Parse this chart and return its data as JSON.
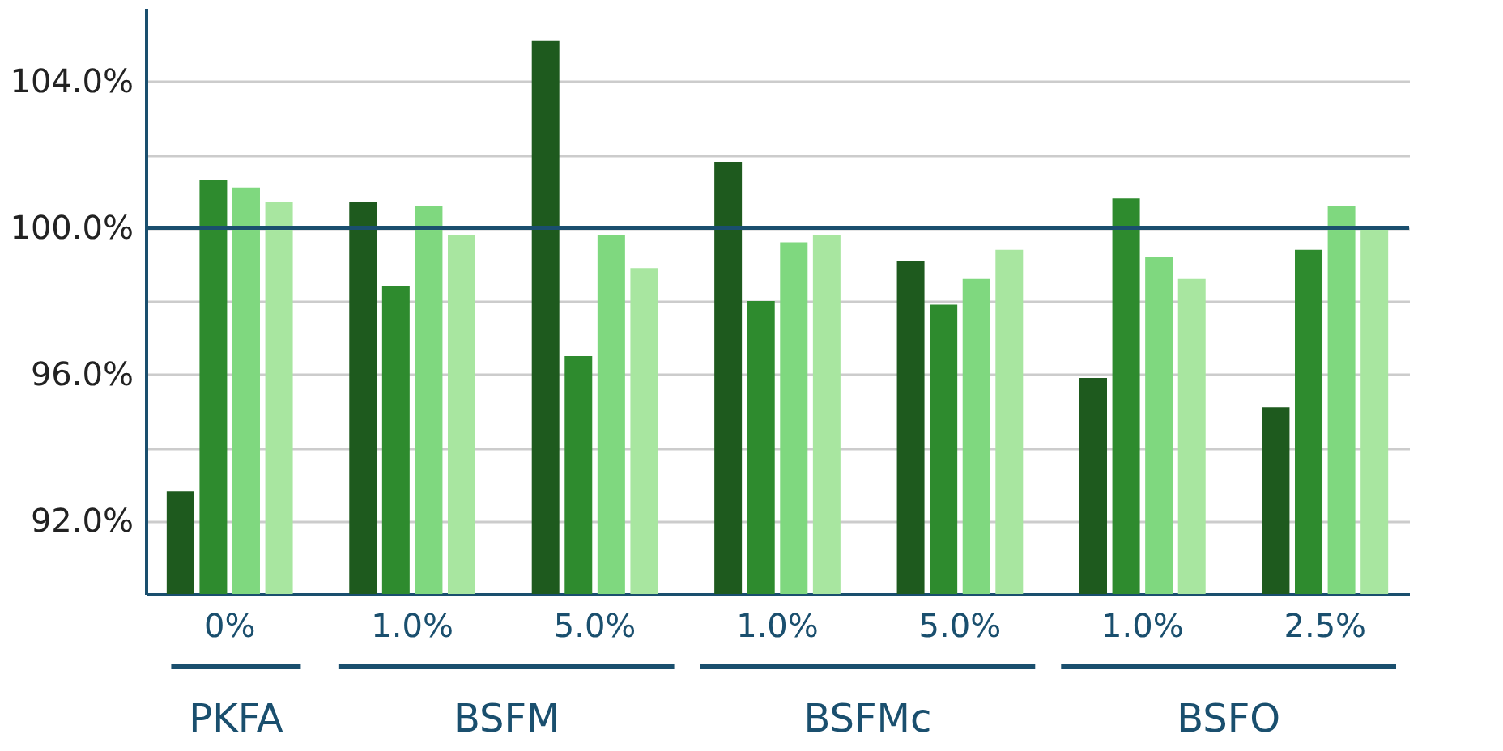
{
  "chart_data": {
    "type": "bar",
    "categories": [
      "0%",
      "1.0%",
      "5.0%",
      "1.0%",
      "5.0%",
      "1.0%",
      "2.5%"
    ],
    "series": [
      {
        "color": "#1e5a1e",
        "values": [
          92.8,
          100.7,
          105.1,
          101.8,
          99.1,
          95.9,
          95.1
        ]
      },
      {
        "color": "#2e8b2e",
        "values": [
          101.3,
          98.4,
          96.5,
          98.0,
          97.9,
          100.8,
          99.4
        ]
      },
      {
        "color": "#7fd87f",
        "values": [
          101.1,
          100.6,
          99.8,
          99.6,
          98.6,
          99.2,
          100.6
        ]
      },
      {
        "color": "#a8e6a0",
        "values": [
          100.7,
          99.8,
          98.9,
          99.8,
          99.4,
          98.6,
          100.0
        ]
      }
    ],
    "ylim": [
      90,
      106
    ],
    "yticks": [
      {
        "value": 92,
        "label": "92.0%"
      },
      {
        "value": 94,
        "label": null
      },
      {
        "value": 96,
        "label": "96.0%"
      },
      {
        "value": 98,
        "label": null
      },
      {
        "value": 100,
        "label": "100.0%"
      },
      {
        "value": 102,
        "label": null
      },
      {
        "value": 104,
        "label": "104.0%"
      }
    ],
    "grid": "y",
    "ref_lines": [
      {
        "axis": "y",
        "value": 100,
        "color": "#1a4f6e"
      }
    ],
    "annotations": [
      "PKFA",
      "BSFM",
      "BSFMc",
      "BSFO"
    ]
  }
}
